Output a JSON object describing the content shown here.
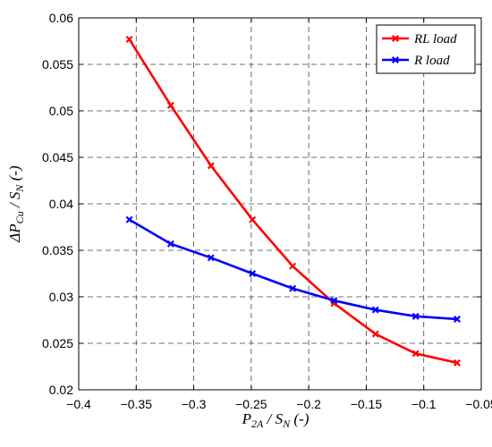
{
  "chart_data": {
    "type": "line",
    "xlabel": {
      "main": "P",
      "sub1": "2A",
      "mid": " / S",
      "sub2": "N",
      "tail": " (-)"
    },
    "ylabel": {
      "main": "ΔP",
      "sub1": "Cu",
      "mid": " / S",
      "sub2": "N",
      "tail": " (-)"
    },
    "xlim": [
      -0.4,
      -0.05
    ],
    "ylim": [
      0.02,
      0.06
    ],
    "xticks": [
      -0.4,
      -0.35,
      -0.3,
      -0.25,
      -0.2,
      -0.15,
      -0.1,
      -0.05
    ],
    "xtick_labels": [
      "−0.4",
      "−0.35",
      "−0.3",
      "−0.25",
      "−0.2",
      "−0.15",
      "−0.1",
      "−0.05"
    ],
    "yticks": [
      0.02,
      0.025,
      0.03,
      0.035,
      0.04,
      0.045,
      0.05,
      0.055,
      0.06
    ],
    "ytick_labels": [
      "0.02",
      "0.025",
      "0.03",
      "0.035",
      "0.04",
      "0.045",
      "0.05",
      "0.055",
      "0.06"
    ],
    "grid": true,
    "legend_position": "top-right",
    "series": [
      {
        "name": "RL load",
        "color": "#ff0000",
        "marker": "x",
        "x": [
          -0.356,
          -0.32,
          -0.285,
          -0.249,
          -0.214,
          -0.178,
          -0.142,
          -0.107,
          -0.071
        ],
        "y": [
          0.0577,
          0.0506,
          0.0441,
          0.0383,
          0.0333,
          0.0293,
          0.026,
          0.0239,
          0.0229
        ]
      },
      {
        "name": "R load",
        "color": "#0000ff",
        "marker": "x",
        "x": [
          -0.356,
          -0.32,
          -0.285,
          -0.249,
          -0.214,
          -0.178,
          -0.142,
          -0.107,
          -0.071
        ],
        "y": [
          0.0383,
          0.0357,
          0.0342,
          0.0325,
          0.0309,
          0.0296,
          0.0286,
          0.0279,
          0.0276
        ]
      }
    ]
  }
}
